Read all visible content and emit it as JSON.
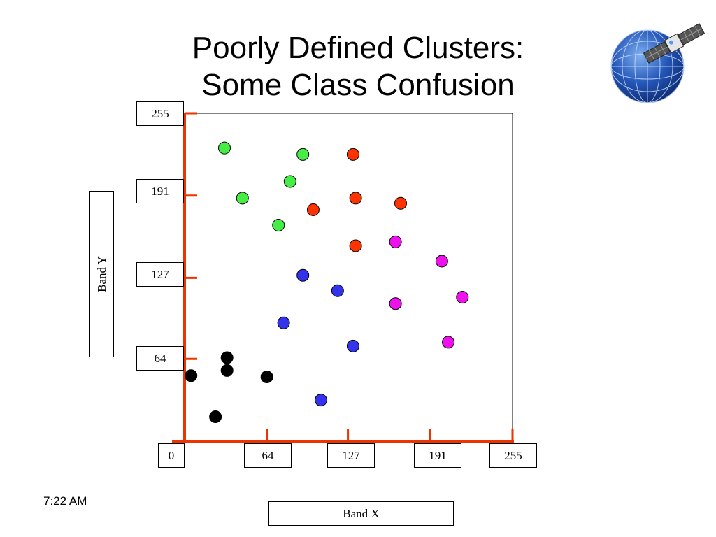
{
  "slide": {
    "title_line1": "Poorly Defined Clusters:",
    "title_line2": "Some Class Confusion",
    "timestamp": "7:22 AM"
  },
  "logo": {
    "icon": "satellite-globe-icon"
  },
  "chart_data": {
    "type": "scatter",
    "xlabel": "Band X",
    "ylabel": "Band Y",
    "xlim": [
      0,
      255
    ],
    "ylim": [
      0,
      255
    ],
    "x_ticks": [
      "0",
      "64",
      "127",
      "191",
      "255"
    ],
    "y_ticks": [
      "255",
      "191",
      "127",
      "64"
    ],
    "grid": false,
    "legend": "none",
    "series": [
      {
        "color": "#000000",
        "points": [
          [
            33,
            65
          ],
          [
            5,
            51
          ],
          [
            33,
            55
          ],
          [
            64,
            50
          ],
          [
            24,
            19
          ]
        ]
      },
      {
        "color": "#44ee44",
        "points": [
          [
            31,
            228
          ],
          [
            92,
            223
          ],
          [
            82,
            202
          ],
          [
            45,
            189
          ],
          [
            73,
            168
          ]
        ]
      },
      {
        "color": "#ff3300",
        "points": [
          [
            131,
            223
          ],
          [
            133,
            189
          ],
          [
            100,
            180
          ],
          [
            168,
            185
          ],
          [
            133,
            152
          ]
        ]
      },
      {
        "color": "#3333ee",
        "points": [
          [
            92,
            129
          ],
          [
            119,
            117
          ],
          [
            77,
            92
          ],
          [
            131,
            74
          ],
          [
            106,
            32
          ]
        ]
      },
      {
        "color": "#ee11ee",
        "points": [
          [
            164,
            155
          ],
          [
            200,
            140
          ],
          [
            164,
            107
          ],
          [
            216,
            112
          ],
          [
            205,
            77
          ]
        ]
      }
    ]
  }
}
